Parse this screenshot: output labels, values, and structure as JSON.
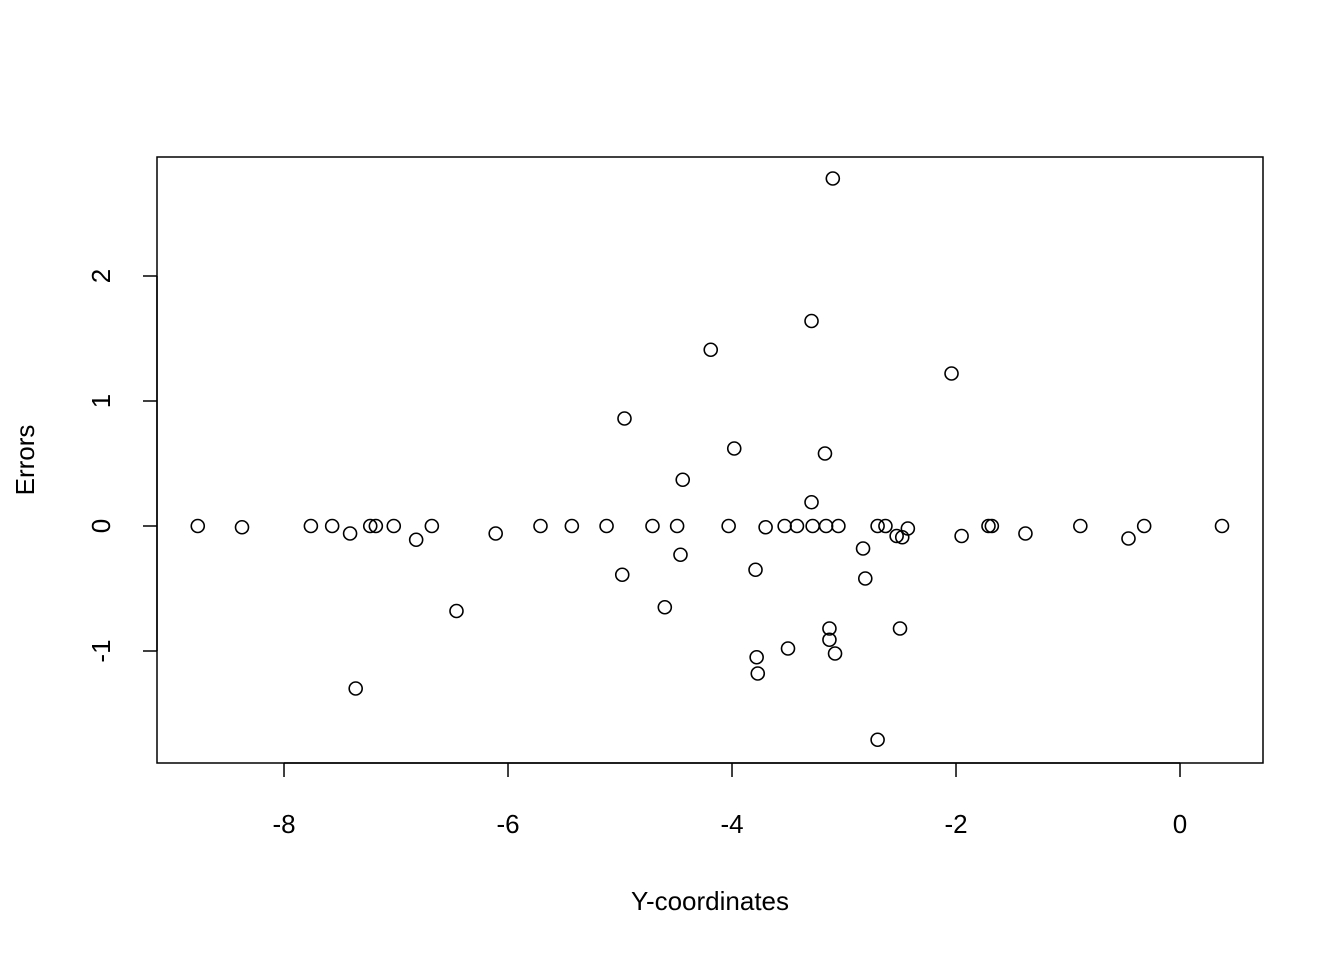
{
  "chart_data": {
    "type": "scatter",
    "xlabel": "Y-coordinates",
    "ylabel": "Errors",
    "x": [
      -8.77,
      -8.375,
      -7.76,
      -7.57,
      -7.41,
      -7.36,
      -7.23,
      -7.18,
      -7.02,
      -6.82,
      -6.68,
      -6.46,
      -6.11,
      -5.71,
      -5.43,
      -5.12,
      -4.98,
      -4.96,
      -4.71,
      -4.6,
      -4.49,
      -4.46,
      -4.44,
      -4.19,
      -4.03,
      -3.98,
      -3.79,
      -3.78,
      -3.77,
      -3.7,
      -3.53,
      -3.5,
      -3.42,
      -3.29,
      -3.29,
      -3.28,
      -3.17,
      -3.16,
      -3.13,
      -3.13,
      -3.1,
      -3.08,
      -3.05,
      -2.83,
      -2.81,
      -2.7,
      -2.7,
      -2.63,
      -2.53,
      -2.5,
      -2.48,
      -2.43,
      -2.04,
      -1.95,
      -1.71,
      -1.68,
      -1.38,
      -0.89,
      -0.46,
      -0.32,
      0.375
    ],
    "values": [
      0,
      -0.01,
      0,
      0,
      -0.06,
      -1.3,
      0,
      0,
      0,
      -0.11,
      0,
      -0.68,
      -0.06,
      0,
      0,
      0,
      -0.39,
      0.86,
      0,
      -0.65,
      0,
      -0.23,
      0.37,
      1.41,
      0,
      0.62,
      -0.35,
      -1.05,
      -1.18,
      -0.01,
      0,
      -0.98,
      0,
      0.19,
      1.64,
      0,
      0.58,
      0,
      -0.91,
      -0.82,
      2.78,
      -1.02,
      0,
      -0.18,
      -0.42,
      0,
      -1.71,
      0,
      -0.08,
      -0.82,
      -0.09,
      -0.02,
      1.22,
      -0.08,
      0,
      0,
      -0.06,
      0,
      -0.1,
      0,
      0
    ],
    "color": "#000000",
    "xlim": [
      -9.134,
      0.741
    ],
    "ylim": [
      -1.896,
      2.952
    ],
    "xticks": [
      -8,
      -6,
      -4,
      -2,
      0
    ],
    "yticks": [
      -1,
      0,
      1,
      2
    ]
  }
}
